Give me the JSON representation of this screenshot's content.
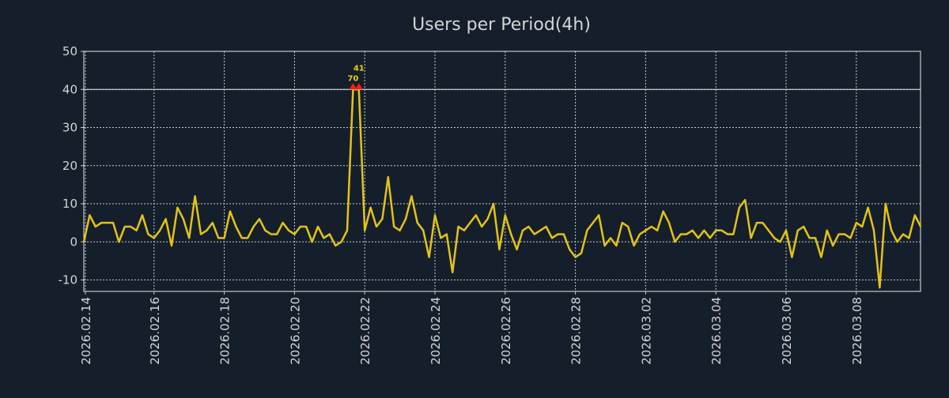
{
  "colors": {
    "background": "#151f2c",
    "line": "#e3c317",
    "text": "#d4d4d4",
    "grid": "#c8c8c8",
    "clip_marker": "#ff1a1a",
    "clip_label": "#f0d000"
  },
  "chart_data": {
    "type": "line",
    "title": "Users per Period(4h)",
    "xlabel": "",
    "ylabel": "",
    "x_start": "2026.02.14 00:00",
    "x_step_hours": 4,
    "ylim": [
      -13,
      50
    ],
    "clip_value": 40,
    "grid": true,
    "yticks": [
      -10,
      0,
      10,
      20,
      30,
      40,
      50
    ],
    "xtick_labels": [
      "2026.02.14",
      "2026.02.16",
      "2026.02.18",
      "2026.02.20",
      "2026.02.22",
      "2026.02.24",
      "2026.02.26",
      "2026.02.28",
      "2026.03.02",
      "2026.03.04",
      "2026.03.06",
      "2026.03.08"
    ],
    "xtick_every_days": 2,
    "series": [
      {
        "name": "Users",
        "values": [
          0,
          7,
          4,
          5,
          5,
          5,
          0,
          4,
          4,
          3,
          7,
          2,
          1,
          3,
          6,
          -1,
          9,
          6,
          1,
          12,
          2,
          3,
          5,
          1,
          1,
          8,
          4,
          1,
          1,
          4,
          6,
          3,
          2,
          2,
          5,
          3,
          2,
          4,
          4,
          0,
          4,
          1,
          2,
          -1,
          0,
          3,
          70,
          41,
          3,
          9,
          4,
          6,
          17,
          4,
          3,
          6,
          12,
          5,
          3,
          -4,
          7,
          1,
          2,
          -8,
          4,
          3,
          5,
          7,
          4,
          6,
          10,
          -2,
          7,
          2,
          -2,
          3,
          4,
          2,
          3,
          4,
          1,
          2,
          2,
          -2,
          -4,
          -3,
          3,
          5,
          7,
          -1,
          1,
          -1,
          5,
          4,
          -1,
          2,
          3,
          4,
          3,
          8,
          5,
          0,
          2,
          2,
          3,
          1,
          3,
          1,
          3,
          3,
          2,
          2,
          9,
          11,
          1,
          5,
          5,
          3,
          1,
          0,
          3,
          -4,
          3,
          4,
          1,
          1,
          -4,
          3,
          -1,
          2,
          2,
          1,
          5,
          4,
          9,
          3,
          -12,
          10,
          3,
          0,
          2,
          1,
          7,
          4
        ]
      }
    ],
    "clipped_labels": [
      "70",
      "41"
    ]
  }
}
